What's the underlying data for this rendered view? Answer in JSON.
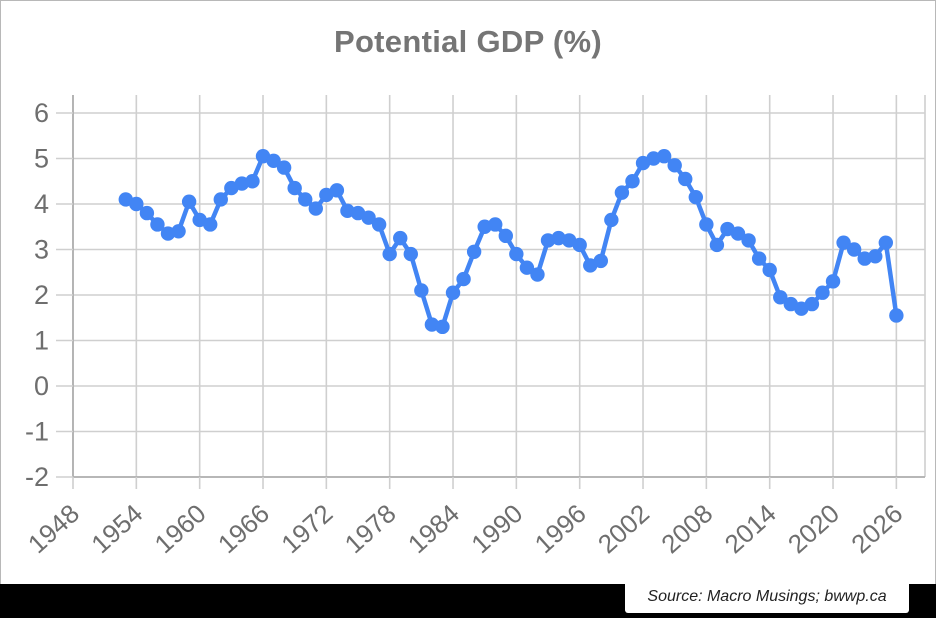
{
  "title": "Potential GDP (%)",
  "source": {
    "label": "Source: Macro Musings; bwwp.ca"
  },
  "colors": {
    "series": "#4285F4",
    "grid": "#cfcfcf",
    "axis": "#b0b0b0",
    "title_text": "#757575",
    "tick_text": "#6e6e6e",
    "footer_bar": "#000000",
    "source_text": "#222222",
    "background": "#ffffff"
  },
  "chart_data": {
    "type": "line",
    "title": "Potential GDP (%)",
    "xlabel": "",
    "ylabel": "",
    "legend": "none",
    "grid": true,
    "marker": "circle",
    "ylim": [
      -2,
      6
    ],
    "xlim": [
      1948,
      2028.7
    ],
    "y_ticks": [
      6,
      5,
      4,
      3,
      2,
      1,
      0,
      -1,
      -2
    ],
    "x_ticks": [
      1948,
      1954,
      1960,
      1966,
      1972,
      1978,
      1984,
      1990,
      1996,
      2002,
      2008,
      2014,
      2020,
      2026
    ],
    "x": [
      1953,
      1954,
      1955,
      1956,
      1957,
      1958,
      1959,
      1960,
      1961,
      1962,
      1963,
      1964,
      1965,
      1966,
      1967,
      1968,
      1969,
      1970,
      1971,
      1972,
      1973,
      1974,
      1975,
      1976,
      1977,
      1978,
      1979,
      1980,
      1981,
      1982,
      1983,
      1984,
      1985,
      1986,
      1987,
      1988,
      1989,
      1990,
      1991,
      1992,
      1993,
      1994,
      1995,
      1996,
      1997,
      1998,
      1999,
      2000,
      2001,
      2002,
      2003,
      2004,
      2005,
      2006,
      2007,
      2008,
      2009,
      2010,
      2011,
      2012,
      2013,
      2014,
      2015,
      2016,
      2017,
      2018,
      2019,
      2020,
      2021,
      2022,
      2023,
      2024,
      2025,
      2026
    ],
    "values": [
      4.1,
      4.0,
      3.8,
      3.55,
      3.35,
      3.4,
      4.05,
      3.65,
      3.55,
      4.1,
      4.35,
      4.45,
      4.5,
      5.05,
      4.95,
      4.8,
      4.35,
      4.1,
      3.9,
      4.2,
      4.3,
      3.85,
      3.8,
      3.7,
      3.55,
      2.9,
      3.25,
      2.9,
      2.1,
      1.35,
      1.3,
      2.05,
      2.35,
      2.95,
      3.5,
      3.55,
      3.3,
      2.9,
      2.6,
      2.45,
      3.2,
      3.25,
      3.2,
      3.1,
      2.65,
      2.75,
      3.65,
      4.25,
      4.5,
      4.9,
      5.0,
      5.05,
      4.85,
      4.55,
      4.15,
      3.55,
      3.1,
      3.45,
      3.35,
      3.2,
      2.8,
      2.55,
      1.95,
      1.8,
      1.7,
      1.8,
      2.05,
      2.3,
      3.15,
      3.0,
      2.8,
      2.85,
      3.15,
      1.55
    ]
  }
}
